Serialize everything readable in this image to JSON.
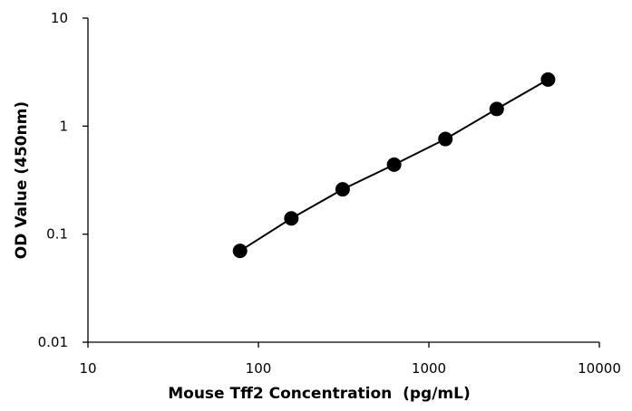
{
  "chart_data": {
    "type": "scatter",
    "title": "",
    "xlabel": "Mouse Tff2 Concentration  (pg/mL)",
    "ylabel": "OD Value (450nm)",
    "x_scale": "log",
    "y_scale": "log",
    "xlim": [
      10,
      10000
    ],
    "ylim": [
      0.01,
      10
    ],
    "x_ticks": [
      "10",
      "100",
      "1000",
      "10000"
    ],
    "y_ticks": [
      "0.01",
      "0.1",
      "1",
      "10"
    ],
    "grid": false,
    "legend": "none",
    "series": [
      {
        "x": [
          78,
          156,
          312,
          625,
          1250,
          2500,
          5000
        ],
        "y": [
          0.07,
          0.14,
          0.26,
          0.44,
          0.76,
          1.44,
          2.7
        ],
        "color": "#000000",
        "marker": "circle",
        "line": true
      }
    ]
  }
}
